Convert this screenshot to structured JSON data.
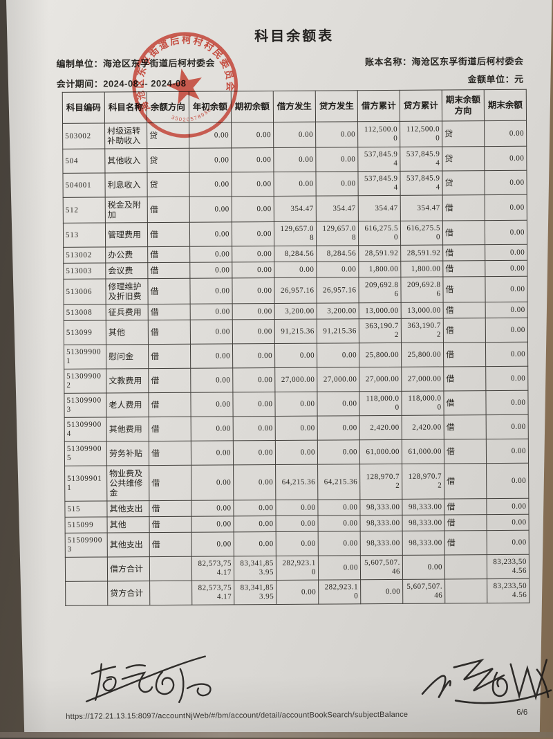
{
  "document": {
    "title": "科目余额表",
    "meta_left": [
      "编制单位：海沧区东孚街道后柯村委会",
      "会计期间：2024-08 -- 2024-08"
    ],
    "meta_right": [
      "账本名称：海沧区东孚街道后柯村委会",
      "金额单位：元"
    ],
    "footer_url": "https://172.21.13.15:8097/accountNjWeb/#/bm/account/detail/accountBookSearch/subjectBalance",
    "page_number": "6/6"
  },
  "stamp": {
    "ring_text": "海沧区东孚街道后柯村村民委员会",
    "code": "35020578936",
    "color": "#c0392b"
  },
  "table": {
    "headers": [
      "科目编码",
      "科目名称",
      "余额方向",
      "年初余额",
      "期初余额",
      "借方发生",
      "贷方发生",
      "借方累计",
      "贷方累计",
      "期末余额方向",
      "期末余额"
    ],
    "rows": [
      [
        "503002",
        "村级运转补助收入",
        "贷",
        "0.00",
        "0.00",
        "0.00",
        "0.00",
        "112,500.00",
        "112,500.00",
        "贷",
        "0.00"
      ],
      [
        "504",
        "其他收入",
        "贷",
        "0.00",
        "0.00",
        "0.00",
        "0.00",
        "537,845.94",
        "537,845.94",
        "贷",
        "0.00"
      ],
      [
        "504001",
        "利息收入",
        "贷",
        "0.00",
        "0.00",
        "0.00",
        "0.00",
        "537,845.94",
        "537,845.94",
        "贷",
        "0.00"
      ],
      [
        "512",
        "税金及附加",
        "借",
        "0.00",
        "0.00",
        "354.47",
        "354.47",
        "354.47",
        "354.47",
        "借",
        "0.00"
      ],
      [
        "513",
        "管理费用",
        "借",
        "0.00",
        "0.00",
        "129,657.08",
        "129,657.08",
        "616,275.50",
        "616,275.50",
        "借",
        "0.00"
      ],
      [
        "513002",
        "办公费",
        "借",
        "0.00",
        "0.00",
        "8,284.56",
        "8,284.56",
        "28,591.92",
        "28,591.92",
        "借",
        "0.00"
      ],
      [
        "513003",
        "会议费",
        "借",
        "0.00",
        "0.00",
        "0.00",
        "0.00",
        "1,800.00",
        "1,800.00",
        "借",
        "0.00"
      ],
      [
        "513006",
        "修理维护及折旧费",
        "借",
        "0.00",
        "0.00",
        "26,957.16",
        "26,957.16",
        "209,692.86",
        "209,692.86",
        "借",
        "0.00"
      ],
      [
        "513008",
        "征兵费用",
        "借",
        "0.00",
        "0.00",
        "3,200.00",
        "3,200.00",
        "13,000.00",
        "13,000.00",
        "借",
        "0.00"
      ],
      [
        "513099",
        "其他",
        "借",
        "0.00",
        "0.00",
        "91,215.36",
        "91,215.36",
        "363,190.72",
        "363,190.72",
        "借",
        "0.00"
      ],
      [
        "513099001",
        "慰问金",
        "借",
        "0.00",
        "0.00",
        "0.00",
        "0.00",
        "25,800.00",
        "25,800.00",
        "借",
        "0.00"
      ],
      [
        "513099002",
        "文教费用",
        "借",
        "0.00",
        "0.00",
        "27,000.00",
        "27,000.00",
        "27,000.00",
        "27,000.00",
        "借",
        "0.00"
      ],
      [
        "513099003",
        "老人费用",
        "借",
        "0.00",
        "0.00",
        "0.00",
        "0.00",
        "118,000.00",
        "118,000.00",
        "借",
        "0.00"
      ],
      [
        "513099004",
        "其他费用",
        "借",
        "0.00",
        "0.00",
        "0.00",
        "0.00",
        "2,420.00",
        "2,420.00",
        "借",
        "0.00"
      ],
      [
        "513099005",
        "劳务补贴",
        "借",
        "0.00",
        "0.00",
        "0.00",
        "0.00",
        "61,000.00",
        "61,000.00",
        "借",
        "0.00"
      ],
      [
        "513099011",
        "物业费及公共维修金",
        "借",
        "0.00",
        "0.00",
        "64,215.36",
        "64,215.36",
        "128,970.72",
        "128,970.72",
        "借",
        "0.00"
      ],
      [
        "515",
        "其他支出",
        "借",
        "0.00",
        "0.00",
        "0.00",
        "0.00",
        "98,333.00",
        "98,333.00",
        "借",
        "0.00"
      ],
      [
        "515099",
        "其他",
        "借",
        "0.00",
        "0.00",
        "0.00",
        "0.00",
        "98,333.00",
        "98,333.00",
        "借",
        "0.00"
      ],
      [
        "515099003",
        "其他支出",
        "借",
        "0.00",
        "0.00",
        "0.00",
        "0.00",
        "98,333.00",
        "98,333.00",
        "借",
        "0.00"
      ],
      [
        "",
        "借方合计",
        "",
        "82,573,754.17",
        "83,341,853.95",
        "282,923.10",
        "0.00",
        "5,607,507.46",
        "0.00",
        "",
        "83,233,504.56"
      ],
      [
        "",
        "贷方合计",
        "",
        "82,573,754.17",
        "83,341,853.95",
        "0.00",
        "282,923.10",
        "0.00",
        "5,607,507.46",
        "",
        "83,233,504.56"
      ]
    ]
  },
  "colors": {
    "stamp_red": "#c0392b",
    "paper": "#dedcd8",
    "desk": "#6f5f4c",
    "ink": "#26241f"
  }
}
